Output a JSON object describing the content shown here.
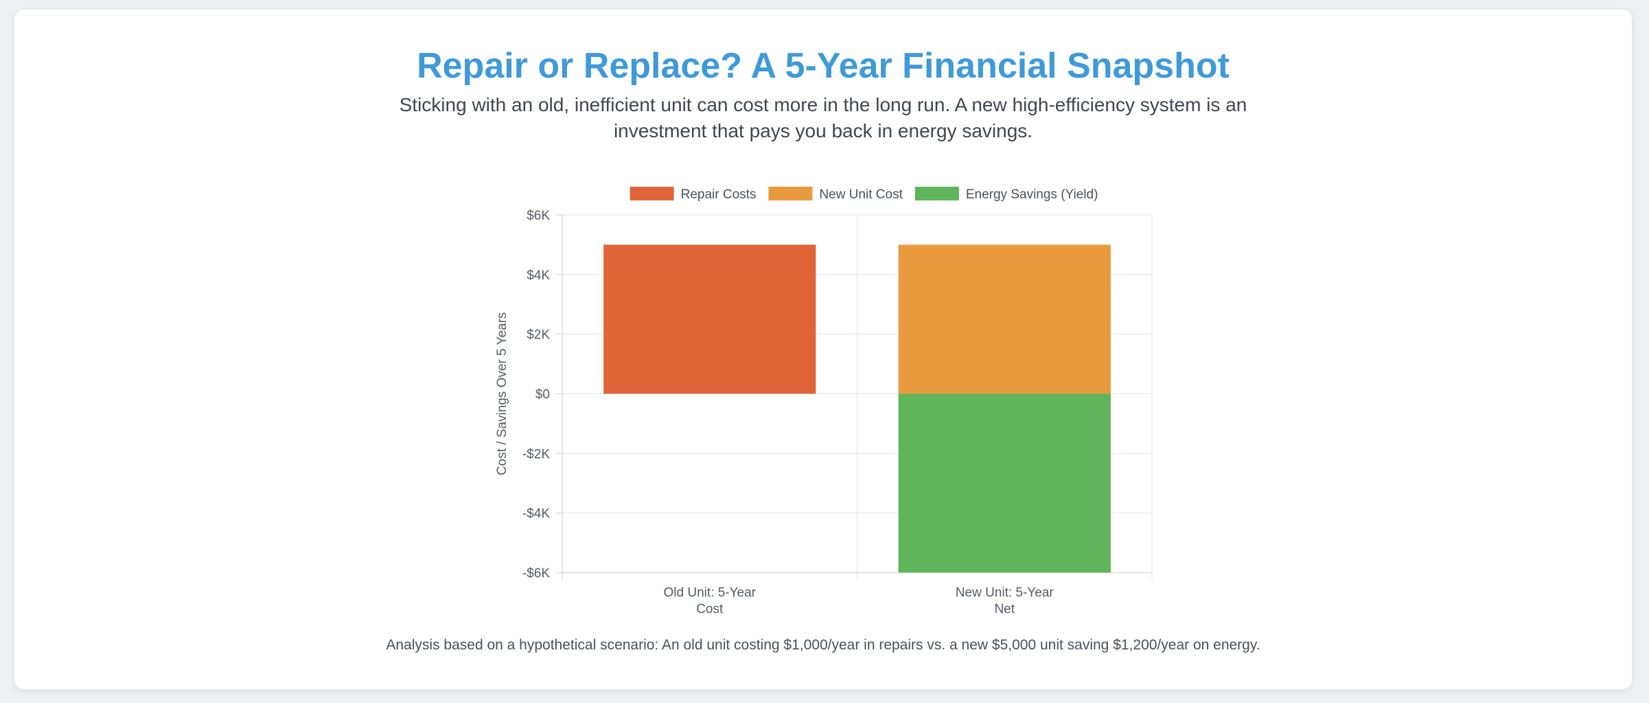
{
  "header": {
    "title": "Repair or Replace? A 5-Year Financial Snapshot",
    "subtitle": "Sticking with an old, inefficient unit can cost more in the long run. A new high-efficiency system is an investment that pays you back in energy savings."
  },
  "footnote": "Analysis based on a hypothetical scenario: An old unit costing $1,000/year in repairs vs. a new $5,000 unit saving $1,200/year on energy.",
  "chart_data": {
    "type": "bar",
    "stacked": true,
    "categories": [
      [
        "Old Unit: 5-Year",
        "Cost"
      ],
      [
        "New Unit: 5-Year",
        "Net"
      ]
    ],
    "series": [
      {
        "name": "Repair Costs",
        "color": "#e06437",
        "values": [
          5000,
          0
        ]
      },
      {
        "name": "New Unit Cost",
        "color": "#e99a3f",
        "values": [
          0,
          5000
        ]
      },
      {
        "name": "Energy Savings (Yield)",
        "color": "#60b55a",
        "values": [
          0,
          -6000
        ]
      }
    ],
    "ylabel": "Cost / Savings Over 5 Years",
    "xlabel": "",
    "ylim": [
      -6000,
      6000
    ],
    "yticks": [
      {
        "value": 6000,
        "label": "$6K"
      },
      {
        "value": 4000,
        "label": "$4K"
      },
      {
        "value": 2000,
        "label": "$2K"
      },
      {
        "value": 0,
        "label": "$0"
      },
      {
        "value": -2000,
        "label": "-$2K"
      },
      {
        "value": -4000,
        "label": "-$4K"
      },
      {
        "value": -6000,
        "label": "-$6K"
      }
    ],
    "grid": true,
    "legend_position": "top"
  }
}
